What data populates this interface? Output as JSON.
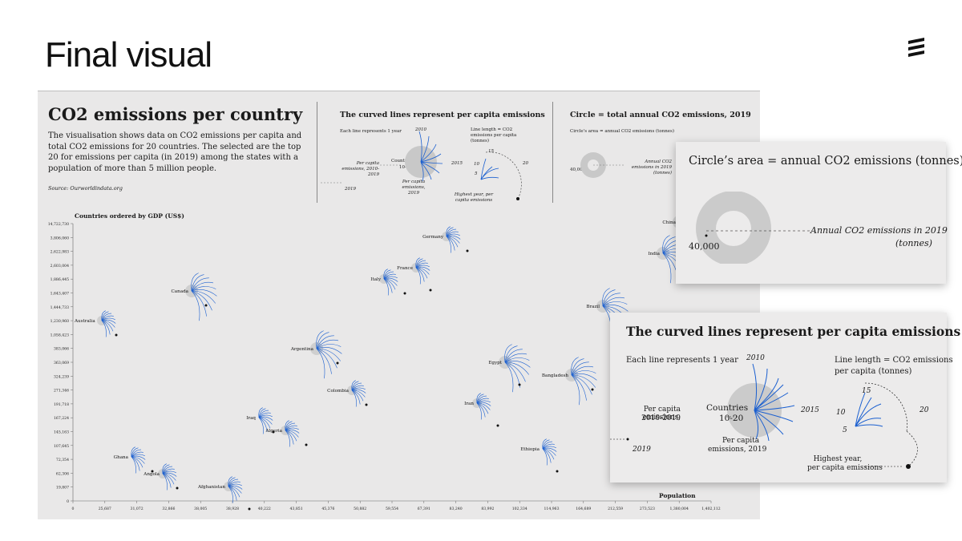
{
  "slide": {
    "title": "Final visual"
  },
  "panel": {
    "title": "CO2 emissions per country",
    "description": "The visualisation shows data on CO2 emissions per capita and total CO2 emissions for 20 countries. The selected are the top 20 for emissions per capita (in 2019) among the states with a population of more than 5 million people.",
    "source": "Source: Ourworldindata.org"
  },
  "legend_lines": {
    "title": "The curved lines represent per capita emissions",
    "each_line": "Each line represents 1 year",
    "line_length": "Line length = CO2 emissions per capita (tonnes)",
    "countries": "Countries",
    "range": "10-20",
    "pce_2010": "Per capita emissions, 2010-2019",
    "pce_2019": "Per capita emissions, 2019",
    "y2010": "2010",
    "y2015": "2015",
    "y2019": "2019",
    "t15": "15",
    "t10": "10",
    "t5": "5",
    "t20": "20",
    "highest": "Highest year, per capita emissions"
  },
  "legend_circle": {
    "title": "Circle = total annual CO2 emissions, 2019",
    "area": "Circle's area = annual CO2 emissions (tonnes)",
    "value": "40,000",
    "annual": "Annual CO2 emissions in 2019 (tonnes)"
  },
  "card_circle": {
    "title": "Circle’s area = annual CO2 emissions  (tonnes)",
    "value": "40,000",
    "annual_line1": "Annual CO2 emissions in 2019",
    "annual_line2": "(tonnes)"
  },
  "card_lines": {
    "title": "The curved lines represent per capita emissions",
    "each_line": "Each line represents 1 year",
    "line_length_1": "Line length = CO2 emissions",
    "line_length_2": "per capita (tonnes)",
    "pce_a1": "Per capita emissions,",
    "pce_a2": "2010-2019",
    "countries": "Countries",
    "range": "10-20",
    "pce_b1": "Per capita",
    "pce_b2": "emissions, 2019",
    "y2010": "2010",
    "y2015": "2015",
    "y2019": "2019",
    "t15": "15",
    "t10": "10",
    "t5": "5",
    "t20": "20",
    "highest_1": "Highest year,",
    "highest_2": "per capita emissions"
  },
  "chart_data": {
    "type": "scatter",
    "ylabel": "Countries ordered by GDP (US$)",
    "xlabel": "Population",
    "x_ticks": [
      "0",
      "25,687",
      "31,072",
      "32,866",
      "38,005",
      "38,928",
      "40,222",
      "43,851",
      "45,376",
      "50,882",
      "59,554",
      "67,391",
      "83,240",
      "83,992",
      "102,334",
      "114,963",
      "164,689",
      "212,559",
      "273,523",
      "1,380,004",
      "1,402,112"
    ],
    "y_ticks": [
      "14,722,730",
      "3,806,060",
      "2,622,983",
      "2,603,004",
      "1,886,445",
      "1,643,407",
      "1,444,733",
      "1,230,960",
      "1,058,423",
      "383,066",
      "363,069",
      "324,239",
      "271,346",
      "191,718",
      "167,224",
      "145,163",
      "107,645",
      "72,354",
      "62,306",
      "19,807",
      "0"
    ],
    "colors": {
      "lines": "#1a5fd0",
      "circle": "#c8c8c8",
      "dot": "#111111"
    },
    "series": [
      {
        "country": "China"
      },
      {
        "country": "India"
      },
      {
        "country": "Germany"
      },
      {
        "country": "France"
      },
      {
        "country": "Italy"
      },
      {
        "country": "Canada"
      },
      {
        "country": "Brazil"
      },
      {
        "country": "Australia"
      },
      {
        "country": "Argentina"
      },
      {
        "country": "Egypt"
      },
      {
        "country": "Bangladesh"
      },
      {
        "country": "Colombia"
      },
      {
        "country": "Iran"
      },
      {
        "country": "Iraq"
      },
      {
        "country": "Algeria"
      },
      {
        "country": "Ethiopia"
      },
      {
        "country": "Ghana"
      },
      {
        "country": "Angola"
      },
      {
        "country": "Afghanistan"
      }
    ]
  }
}
